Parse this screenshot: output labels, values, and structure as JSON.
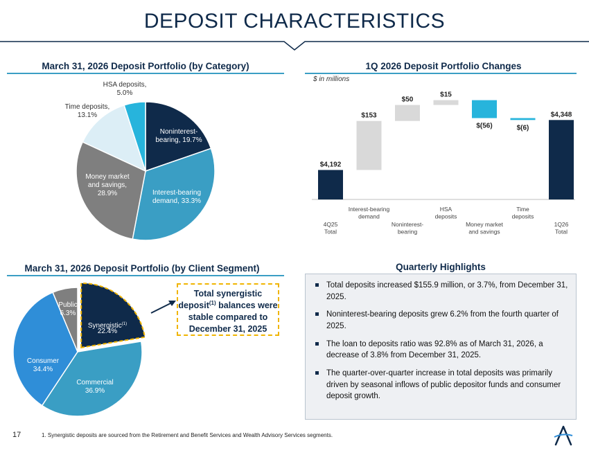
{
  "page": {
    "title": "DEPOSIT CHARACTERISTICS",
    "page_number": "17",
    "footnote": "1. Synergistic deposits are sourced from the Retirement and Benefit Services and Wealth Advisory Services segments."
  },
  "colors": {
    "navy": "#0f2a4a",
    "teal": "#3a9ec4",
    "gray": "#7f7f7f",
    "light_blue": "#dceef6",
    "cyan": "#27b4dc",
    "light_gray": "#d9d9d9",
    "consumer_blue": "#2f8ed8",
    "highlight_gold": "#f0b400"
  },
  "callout": {
    "line1": "Total synergistic",
    "line2_prefix": "deposit",
    "line2_sup": "(1)",
    "line2_suffix": " balances were",
    "line3": "stable compared to",
    "line4": "December 31, 2025"
  },
  "highlights": {
    "title": "Quarterly Highlights",
    "items": [
      "Total deposits increased $155.9 million, or 3.7%, from December 31, 2025.",
      "Noninterest-bearing deposits grew 6.2% from the fourth quarter of 2025.",
      "The loan to deposits ratio was 92.8% as of March 31, 2026, a decrease of 3.8% from December 31, 2025.",
      "The quarter-over-quarter increase in total deposits was primarily driven by seasonal inflows of public depositor funds and consumer deposit growth."
    ]
  },
  "chart_data": [
    {
      "type": "pie",
      "title": "March 31, 2026 Deposit Portfolio (by Category)",
      "slices": [
        {
          "label": [
            "Noninterest-",
            "bearing, 19.7%"
          ],
          "value": 19.7,
          "color": "#0f2a4a"
        },
        {
          "label": [
            "Interest-bearing",
            "demand, 33.3%"
          ],
          "value": 33.3,
          "color": "#3a9ec4"
        },
        {
          "label": [
            "Money market",
            "and savings,",
            "28.9%"
          ],
          "value": 28.9,
          "color": "#7f7f7f"
        },
        {
          "label": [
            "Time deposits,",
            "13.1%"
          ],
          "value": 13.1,
          "color": "#dceef6"
        },
        {
          "label": [
            "HSA deposits,",
            "5.0%"
          ],
          "value": 5.0,
          "color": "#27b4dc"
        }
      ]
    },
    {
      "type": "bar",
      "subtype": "waterfall",
      "title": "1Q 2026 Deposit Portfolio Changes",
      "subtitle": "$ in millions",
      "categories": [
        [
          "4Q25",
          "Total"
        ],
        [
          "Interest-bearing",
          "demand"
        ],
        [
          "Noninterest-",
          "bearing"
        ],
        [
          "HSA",
          "deposits"
        ],
        [
          "Money market",
          "and savings"
        ],
        [
          "Time",
          "deposits"
        ],
        [
          "1Q26",
          "Total"
        ]
      ],
      "values": [
        4192,
        153,
        50,
        15,
        -56,
        -6,
        4348
      ],
      "value_labels": [
        "$4,192",
        "$153",
        "$50",
        "$15",
        "$(56)",
        "$(6)",
        "$4,348"
      ],
      "kinds": [
        "total",
        "delta",
        "delta",
        "delta",
        "delta",
        "delta",
        "total"
      ],
      "colors": [
        "#0f2a4a",
        "#d9d9d9",
        "#d9d9d9",
        "#d9d9d9",
        "#27b4dc",
        "#27b4dc",
        "#0f2a4a"
      ]
    },
    {
      "type": "pie",
      "title": "March 31, 2026 Deposit Portfolio (by Client Segment)",
      "slices": [
        {
          "label": [
            "Synergistic",
            "22.4%"
          ],
          "sup": "(1)",
          "value": 22.4,
          "color": "#0f2a4a",
          "exploded": true
        },
        {
          "label": [
            "Commercial",
            "36.9%"
          ],
          "value": 36.9,
          "color": "#3a9ec4"
        },
        {
          "label": [
            "Consumer",
            "34.4%"
          ],
          "value": 34.4,
          "color": "#2f8ed8"
        },
        {
          "label": [
            "Public",
            "6.3%"
          ],
          "value": 6.3,
          "color": "#7f7f7f"
        }
      ]
    }
  ]
}
